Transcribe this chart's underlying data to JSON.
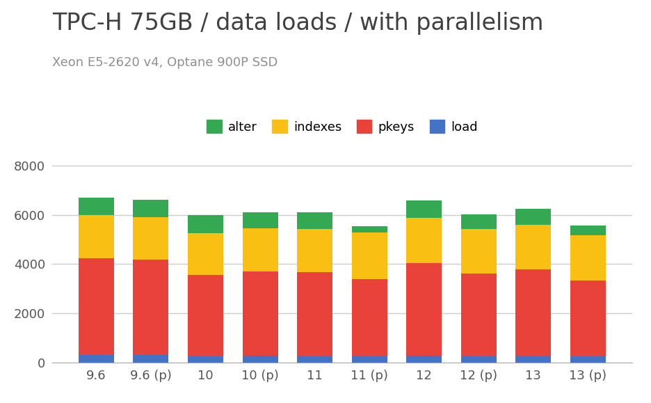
{
  "title": "TPC-H 75GB / data loads / with parallelism",
  "subtitle": "Xeon E5-2620 v4, Optane 900P SSD",
  "categories": [
    "9.6",
    "9.6 (p)",
    "10",
    "10 (p)",
    "11",
    "11 (p)",
    "12",
    "12 (p)",
    "13",
    "13 (p)"
  ],
  "series": {
    "load": [
      300,
      310,
      270,
      280,
      270,
      270,
      280,
      270,
      260,
      250
    ],
    "pkeys": [
      3950,
      3870,
      3280,
      3430,
      3400,
      3120,
      3750,
      3340,
      3520,
      3080
    ],
    "indexes": [
      1750,
      1720,
      1700,
      1750,
      1750,
      1900,
      1850,
      1820,
      1800,
      1850
    ],
    "alter": [
      700,
      700,
      750,
      650,
      680,
      250,
      700,
      600,
      650,
      380
    ]
  },
  "colors": {
    "load": "#4472C4",
    "pkeys": "#E8423A",
    "indexes": "#F9C013",
    "alter": "#34A853"
  },
  "legend_order": [
    "alter",
    "indexes",
    "pkeys",
    "load"
  ],
  "ylim": [
    0,
    8500
  ],
  "yticks": [
    0,
    2000,
    4000,
    6000,
    8000
  ],
  "background_color": "#ffffff",
  "title_color": "#404040",
  "subtitle_color": "#909090",
  "title_fontsize": 24,
  "subtitle_fontsize": 13,
  "legend_fontsize": 13,
  "tick_fontsize": 13,
  "bar_width": 0.65,
  "grid_color": "#cccccc"
}
